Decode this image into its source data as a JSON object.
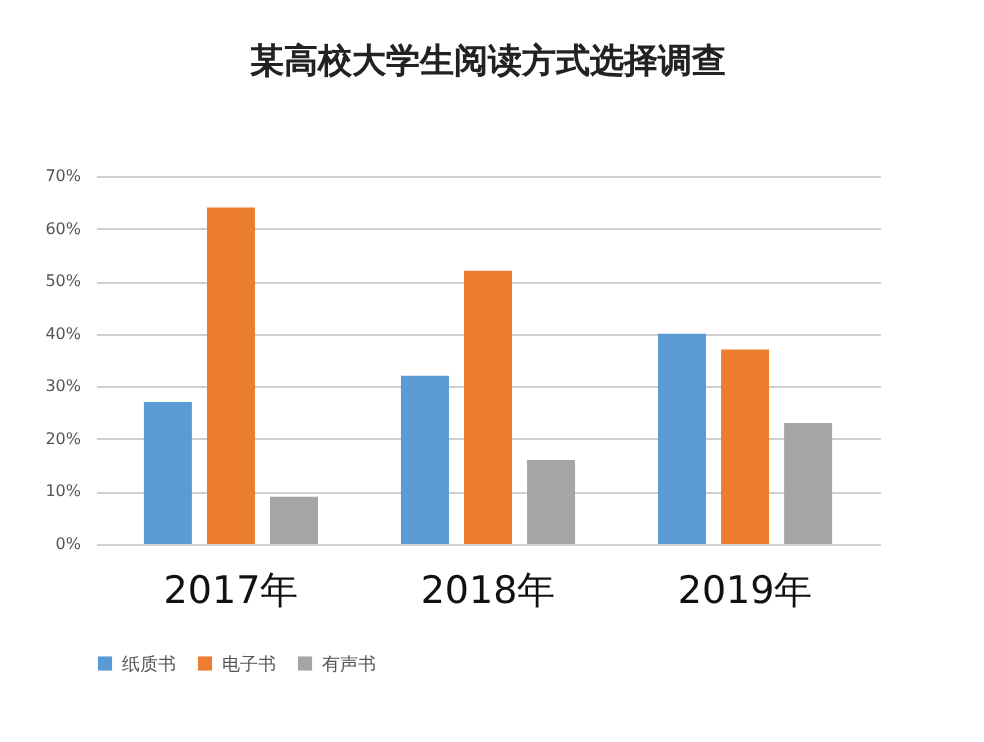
{
  "chart_data": {
    "type": "bar",
    "title": "某高校大学生阅读方式选择调查",
    "categories": [
      "2017年",
      "2018年",
      "2019年"
    ],
    "series": [
      {
        "name": "纸质书",
        "color": "#5b9bd5",
        "values": [
          27,
          32,
          40
        ]
      },
      {
        "name": "电子书",
        "color": "#ed7d31",
        "values": [
          64,
          52,
          37
        ]
      },
      {
        "name": "有声书",
        "color": "#a5a5a5",
        "values": [
          9,
          16,
          23
        ]
      }
    ],
    "ylim": [
      0,
      70
    ],
    "yticks": [
      {
        "value": 0,
        "label": "0%"
      },
      {
        "value": 10,
        "label": "10%"
      },
      {
        "value": 20,
        "label": "20%"
      },
      {
        "value": 30,
        "label": "30%"
      },
      {
        "value": 40,
        "label": "40%"
      },
      {
        "value": 50,
        "label": "50%"
      },
      {
        "value": 60,
        "label": "60%"
      },
      {
        "value": 70,
        "label": "70%"
      }
    ],
    "grid": "y",
    "legend": "bottom"
  }
}
